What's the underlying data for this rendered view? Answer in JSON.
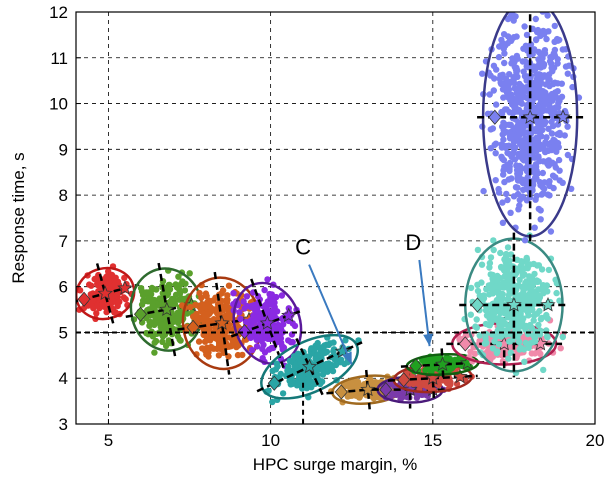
{
  "chart_data": {
    "type": "scatter",
    "xlabel": "HPC surge margin, %",
    "ylabel": "Response time, s",
    "xlim": [
      4,
      20
    ],
    "ylim": [
      3,
      12
    ],
    "xticks": [
      5,
      10,
      15,
      20
    ],
    "yticks": [
      3,
      4,
      5,
      6,
      7,
      8,
      9,
      10,
      11,
      12
    ],
    "grid": "dashed",
    "reference_lines": {
      "y": 5,
      "x": 11
    },
    "clusters": [
      {
        "color": "#e03030",
        "ellipse": "#c01818",
        "center": [
          4.9,
          5.85
        ],
        "rx": 0.9,
        "ry": 0.55,
        "angle": -15
      },
      {
        "color": "#5aa02c",
        "ellipse": "#2e6b2e",
        "center": [
          6.8,
          5.5
        ],
        "rx": 1.1,
        "ry": 0.9,
        "angle": -10
      },
      {
        "color": "#d4601e",
        "ellipse": "#a83a10",
        "center": [
          8.5,
          5.2
        ],
        "rx": 1.2,
        "ry": 1.0,
        "angle": -8
      },
      {
        "color": "#8a2be2",
        "ellipse": "#5a1a9a",
        "center": [
          9.9,
          5.2
        ],
        "rx": 1.0,
        "ry": 0.9,
        "angle": -20
      },
      {
        "color": "#2aa5a5",
        "ellipse": "#157878",
        "center": [
          11.2,
          4.25
        ],
        "rx": 1.6,
        "ry": 0.55,
        "angle": -25
      },
      {
        "color": "#c89040",
        "ellipse": "#a06a20",
        "center": [
          13.0,
          3.75
        ],
        "rx": 1.1,
        "ry": 0.3,
        "angle": -5
      },
      {
        "color": "#7a3aaa",
        "ellipse": "#4a1a7a",
        "center": [
          14.3,
          3.75
        ],
        "rx": 1.0,
        "ry": 0.28,
        "angle": 0
      },
      {
        "color": "#d04a40",
        "ellipse": "#a02a20",
        "center": [
          15.0,
          4.0
        ],
        "rx": 1.2,
        "ry": 0.3,
        "angle": -3
      },
      {
        "color": "#20a020",
        "ellipse": "#106010",
        "center": [
          15.3,
          4.3
        ],
        "rx": 1.1,
        "ry": 0.22,
        "angle": -3
      },
      {
        "color": "#f08aaa",
        "ellipse": "#b02050",
        "center": [
          17.2,
          4.75
        ],
        "rx": 1.6,
        "ry": 0.45,
        "angle": 0
      },
      {
        "color": "#70d8c8",
        "ellipse": "#3a8a82",
        "center": [
          17.5,
          5.6
        ],
        "rx": 1.5,
        "ry": 1.45,
        "angle": 0
      },
      {
        "color": "#7a80f0",
        "ellipse": "#3a3a8a",
        "center": [
          18.0,
          9.7
        ],
        "rx": 1.45,
        "ry": 2.6,
        "angle": 0
      }
    ],
    "annotations": [
      {
        "text": "C",
        "label_at": [
          11.0,
          6.7
        ],
        "arrow_to": [
          12.5,
          4.3
        ]
      },
      {
        "text": "D",
        "label_at": [
          14.4,
          6.8
        ],
        "arrow_to": [
          14.9,
          4.7
        ]
      }
    ]
  }
}
